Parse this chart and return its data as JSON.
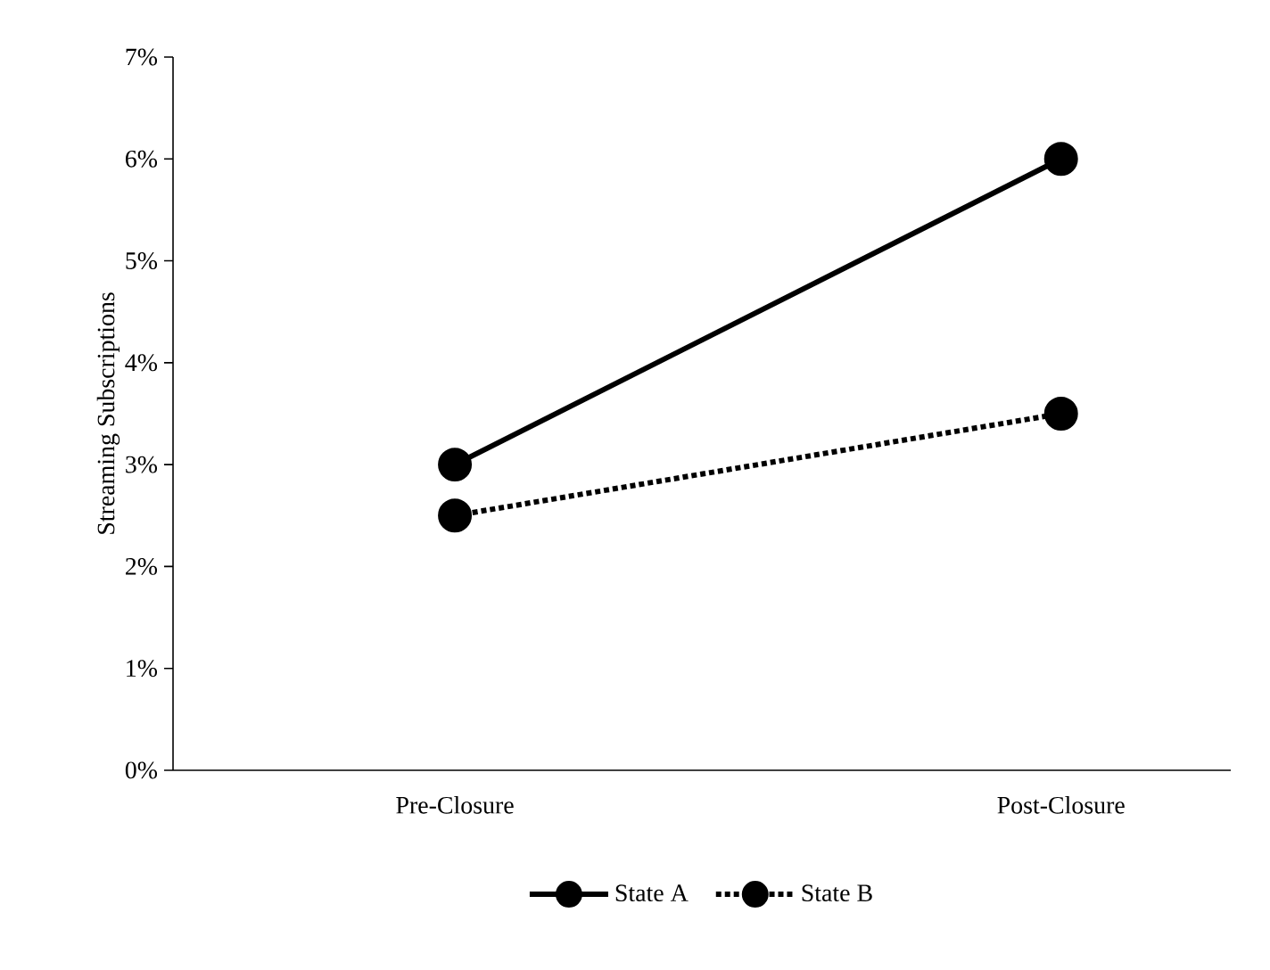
{
  "chart_data": {
    "type": "line",
    "ylabel": "Streaming Subscriptions",
    "categories": [
      "Pre-Closure",
      "Post-Closure"
    ],
    "series": [
      {
        "name": "State A",
        "color": "#000000",
        "line_style": "solid",
        "values": [
          3,
          6
        ]
      },
      {
        "name": "State B",
        "color": "#000000",
        "line_style": "dotted",
        "values": [
          2.5,
          3.5
        ]
      }
    ],
    "ylim": [
      0,
      7
    ],
    "yticks": [
      {
        "value": 0,
        "label": "0%"
      },
      {
        "value": 1,
        "label": "1%"
      },
      {
        "value": 2,
        "label": "2%"
      },
      {
        "value": 3,
        "label": "3%"
      },
      {
        "value": 4,
        "label": "4%"
      },
      {
        "value": 5,
        "label": "5%"
      },
      {
        "value": 6,
        "label": "6%"
      },
      {
        "value": 7,
        "label": "7%"
      }
    ],
    "marker": "circle",
    "legend": "bottom",
    "grid": false
  }
}
